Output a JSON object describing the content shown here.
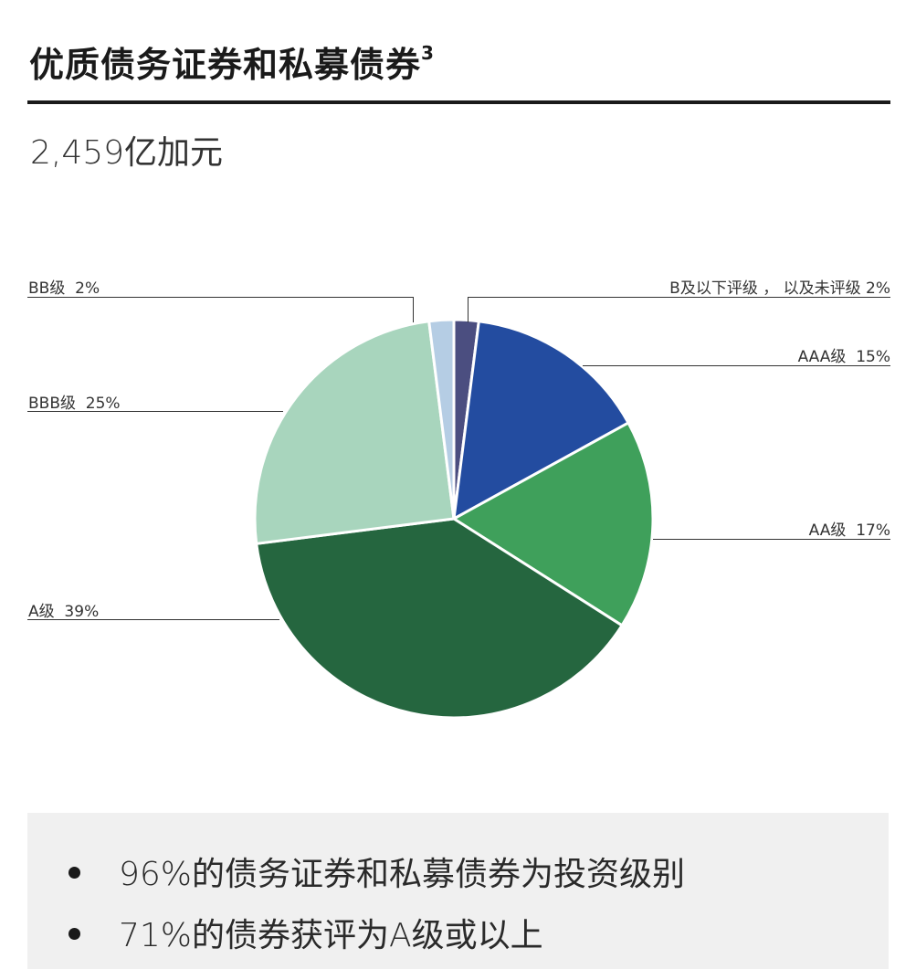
{
  "header": {
    "title": "优质债务证券和私募债券",
    "footnote": "3",
    "total": "2,459亿加元"
  },
  "chart_data": {
    "type": "pie",
    "start": "top",
    "direction": "clockwise",
    "slices": [
      {
        "label": "B及以下评级 ， 以及未评级",
        "value": 2,
        "display": "B及以下评级 ， 以及未评级 2%",
        "color": "#4b4e80"
      },
      {
        "label": "AAA级",
        "value": 15,
        "display": "AAA级  15%",
        "color": "#234ca0"
      },
      {
        "label": "AA级",
        "value": 17,
        "display": "AA级  17%",
        "color": "#3fa05b"
      },
      {
        "label": "A级",
        "value": 39,
        "display": "A级  39%",
        "color": "#25663f"
      },
      {
        "label": "BBB级",
        "value": 25,
        "display": "BBB级  25%",
        "color": "#a8d5bd"
      },
      {
        "label": "BB级",
        "value": 2,
        "display": "BB级  2%",
        "color": "#b5cde4"
      }
    ]
  },
  "notes": [
    "96%的债务证券和私募债券为投资级别",
    "71%的债券获评为A级或以上"
  ]
}
